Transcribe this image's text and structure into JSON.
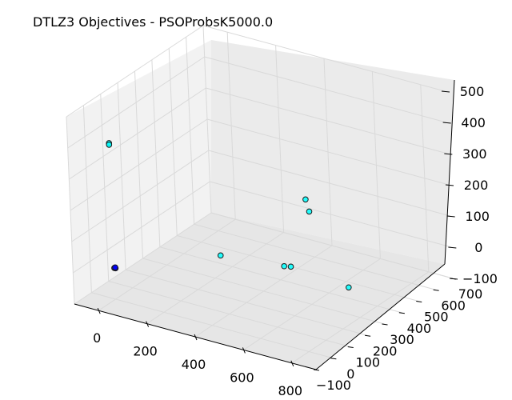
{
  "chart_data": {
    "type": "scatter",
    "title": "DTLZ3 Objectives - PSOProbsK5000.0",
    "xlabel": "",
    "ylabel": "",
    "zlabel": "",
    "x_ticks": [
      "0",
      "200",
      "400",
      "600",
      "800"
    ],
    "y_ticks": [
      "−100",
      "0",
      "100",
      "200",
      "300",
      "400",
      "500",
      "600",
      "700"
    ],
    "z_ticks": [
      "−100",
      "0",
      "100",
      "200",
      "300",
      "400",
      "500"
    ],
    "xlim": [
      -100,
      900
    ],
    "ylim": [
      -100,
      700
    ],
    "zlim": [
      -100,
      500
    ],
    "grid": true,
    "series": [
      {
        "color": "#00ffff",
        "points": [
          {
            "x": 0,
            "y": 0,
            "z": 400
          },
          {
            "x": 0,
            "y": 0,
            "z": 395
          },
          {
            "x": 430,
            "y": 520,
            "z": 120
          },
          {
            "x": 480,
            "y": 470,
            "z": 110
          },
          {
            "x": 300,
            "y": 200,
            "z": 30
          },
          {
            "x": 520,
            "y": 260,
            "z": 20
          },
          {
            "x": 570,
            "y": 230,
            "z": 40
          },
          {
            "x": 860,
            "y": 160,
            "z": 60
          }
        ]
      },
      {
        "color": "#0000ff",
        "points": [
          {
            "x": 0,
            "y": 0,
            "z": 0
          },
          {
            "x": 5,
            "y": 0,
            "z": 0
          },
          {
            "x": 0,
            "y": 5,
            "z": 0
          }
        ]
      }
    ]
  }
}
